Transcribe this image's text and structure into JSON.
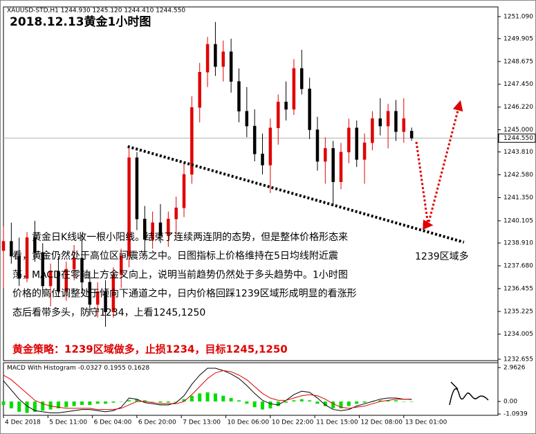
{
  "chart_data": [
    {
      "type": "candlestick",
      "header": "XAUUSD-STD,H1  1244.930 1245.120 1244.410 1244.550",
      "title": "2018.12.13黄金1小时图",
      "x": [
        0,
        3,
        6,
        9,
        12,
        15,
        18,
        21,
        24,
        27,
        30,
        33,
        36,
        39,
        42,
        45,
        48,
        51,
        54,
        57,
        60,
        63,
        66,
        69,
        72,
        75,
        78,
        81,
        84,
        87,
        90,
        93,
        96,
        99,
        102,
        105,
        108,
        111,
        114,
        117,
        120,
        123,
        126,
        129,
        132,
        135,
        138,
        141,
        144,
        147,
        150,
        153,
        156
      ],
      "open": [
        1238.5,
        1239.0,
        1238.2,
        1237.0,
        1239.2,
        1238.4,
        1236.6,
        1237.4,
        1236.3,
        1237.5,
        1238.1,
        1236.8,
        1235.6,
        1236.3,
        1235.2,
        1237.2,
        1238.2,
        1243.5,
        1240.2,
        1239.1,
        1240.0,
        1239.3,
        1240.2,
        1240.8,
        1242.6,
        1246.2,
        1248.1,
        1249.6,
        1248.4,
        1249.2,
        1247.6,
        1246.0,
        1245.2,
        1243.7,
        1243.1,
        1245.1,
        1246.5,
        1246.1,
        1248.3,
        1247.2,
        1245.0,
        1243.3,
        1244.0,
        1242.2,
        1243.8,
        1245.1,
        1243.4,
        1244.3,
        1245.6,
        1245.2,
        1246.0,
        1244.9,
        1244.93
      ],
      "high": [
        1239.8,
        1240.0,
        1239.2,
        1239.5,
        1240.1,
        1238.9,
        1237.8,
        1238.2,
        1237.9,
        1238.8,
        1239.3,
        1237.4,
        1236.8,
        1236.9,
        1237.6,
        1238.6,
        1244.1,
        1243.8,
        1240.9,
        1240.6,
        1241.0,
        1240.6,
        1241.4,
        1243.2,
        1246.8,
        1248.6,
        1250.0,
        1250.8,
        1249.8,
        1249.9,
        1248.3,
        1247.3,
        1246.1,
        1244.8,
        1245.6,
        1246.9,
        1247.6,
        1248.8,
        1249.3,
        1247.8,
        1245.7,
        1244.6,
        1244.4,
        1244.3,
        1245.6,
        1245.5,
        1244.8,
        1246.0,
        1246.7,
        1246.4,
        1246.6,
        1246.7,
        1245.12
      ],
      "low": [
        1236.5,
        1237.8,
        1236.6,
        1236.8,
        1237.9,
        1236.2,
        1235.5,
        1236.0,
        1235.8,
        1236.9,
        1236.2,
        1235.0,
        1234.9,
        1234.4,
        1234.9,
        1236.5,
        1237.6,
        1239.6,
        1238.4,
        1238.6,
        1238.9,
        1238.7,
        1239.2,
        1240.3,
        1242.1,
        1245.4,
        1247.3,
        1247.9,
        1247.6,
        1247.0,
        1245.4,
        1244.6,
        1243.3,
        1242.6,
        1241.6,
        1244.2,
        1245.5,
        1245.8,
        1246.9,
        1244.5,
        1242.8,
        1242.1,
        1240.9,
        1241.8,
        1243.2,
        1243.0,
        1242.1,
        1243.9,
        1244.7,
        1244.0,
        1244.4,
        1244.3,
        1244.41
      ],
      "close": [
        1239.0,
        1238.2,
        1237.0,
        1239.2,
        1238.4,
        1236.6,
        1237.4,
        1236.3,
        1237.5,
        1238.1,
        1236.8,
        1235.6,
        1236.3,
        1235.2,
        1237.2,
        1238.2,
        1243.5,
        1240.2,
        1239.1,
        1240.0,
        1239.3,
        1240.2,
        1240.8,
        1242.6,
        1246.2,
        1248.1,
        1249.6,
        1248.4,
        1249.2,
        1247.6,
        1246.0,
        1245.2,
        1243.7,
        1243.1,
        1245.1,
        1246.5,
        1246.1,
        1248.3,
        1247.2,
        1245.0,
        1243.3,
        1244.0,
        1242.2,
        1243.8,
        1245.1,
        1243.4,
        1244.3,
        1245.6,
        1245.2,
        1246.0,
        1244.9,
        1245.6,
        1244.55
      ],
      "up_color": "#e00000",
      "down_color": "#000000",
      "xlim": [
        0,
        189
      ],
      "ylim": [
        1232.58,
        1251.61
      ],
      "yticks": [
        {
          "value": 1251.09,
          "label": "1251.090"
        },
        {
          "value": 1249.905,
          "label": "1249.905"
        },
        {
          "value": 1248.675,
          "label": "1248.675"
        },
        {
          "value": 1247.45,
          "label": "1247.450"
        },
        {
          "value": 1246.22,
          "label": "1246.220"
        },
        {
          "value": 1245,
          "label": "1245.000"
        },
        {
          "value": 1243.81,
          "label": "1243.810"
        },
        {
          "value": 1242.58,
          "label": "1242.580"
        },
        {
          "value": 1241.35,
          "label": "1241.350"
        },
        {
          "value": 1240.105,
          "label": "1240.105"
        },
        {
          "value": 1238.91,
          "label": "1238.910"
        },
        {
          "value": 1237.68,
          "label": "1237.680"
        },
        {
          "value": 1236.455,
          "label": "1236.455"
        },
        {
          "value": 1235.225,
          "label": "1235.225"
        },
        {
          "value": 1234.005,
          "label": "1234.005"
        },
        {
          "value": 1232.655,
          "label": "1232.655"
        }
      ],
      "xticks": [
        {
          "value": 0,
          "label": "4 Dec 2018"
        },
        {
          "value": 17,
          "label": "5 Dec 11:00"
        },
        {
          "value": 34,
          "label": "6 Dec 04:00"
        },
        {
          "value": 51,
          "label": "6 Dec 20:00"
        },
        {
          "value": 68,
          "label": "7 Dec 13:00"
        },
        {
          "value": 85,
          "label": "10 Dec 06:00"
        },
        {
          "value": 102,
          "label": "10 Dec 22:00"
        },
        {
          "value": 119,
          "label": "11 Dec 15:00"
        },
        {
          "value": 136,
          "label": "12 Dec 08:00"
        },
        {
          "value": 153,
          "label": "13 Dec 01:00"
        }
      ],
      "last_price": {
        "value": 1244.55,
        "label": "1244.550"
      },
      "trendline": {
        "x": [
          47.5,
          176
        ],
        "values": [
          1244.1,
          1238.95
        ],
        "color": "#000000"
      },
      "arrow": {
        "x": [
          157.8,
          162.3,
          174.2
        ],
        "values": [
          1244.35,
          1239.88,
          1246.32
        ],
        "color": "#e00000"
      },
      "callout": "1239区域多",
      "paragraph": [
        "　　黄金日K线收一根小阳线。结束了连续两连阴的态势，但是整体价格形态来",
        "看，黄金仍然处于高位区间震荡之中。日图指标上价格维持在5日均线附近震",
        "荡，MACD在零轴上方金叉向上，说明当前趋势仍然处于多头趋势中。1小时图",
        "价格的高位调整处于倾向下通道之中，日内价格回踩1239区域形成明显的看涨形",
        "态后看带多头，防守1234，上看1245,1250"
      ],
      "strategy": "黄金策略：1239区域做多，止损1234，目标1245,1250"
    },
    {
      "type": "macd",
      "label": "MACD With Histogram",
      "histogram": [
        -0.3,
        -0.6,
        -0.9,
        -1.0,
        -0.9,
        -0.8,
        -0.7,
        -0.6,
        -0.5,
        -0.4,
        -0.3,
        -0.3,
        -0.2,
        -0.2,
        -0.1,
        0,
        0.1,
        0.2,
        0.1,
        0,
        -0.1,
        -0.1,
        0,
        0.2,
        0.5,
        0.7,
        0.8,
        0.7,
        0.5,
        0.3,
        0.1,
        -0.2,
        -0.5,
        -0.7,
        -0.6,
        -0.4,
        -0.1,
        0.1,
        0.2,
        0.1,
        -0.2,
        -0.4,
        -0.6,
        -0.6,
        -0.4,
        -0.2,
        -0.1,
        0,
        0.1,
        0.1,
        0.1,
        0,
        -0.0327
      ],
      "macd": [
        1.8,
        1.0,
        0.2,
        -0.4,
        -0.8,
        -0.9,
        -1.0,
        -1.0,
        -0.9,
        -0.8,
        -0.7,
        -0.7,
        -0.8,
        -0.9,
        -0.8,
        -0.5,
        0.3,
        0.2,
        -0.1,
        -0.2,
        -0.3,
        -0.3,
        -0.1,
        0.5,
        1.5,
        2.3,
        2.9,
        2.9,
        2.7,
        2.4,
        2.0,
        1.4,
        0.7,
        0.1,
        -0.2,
        -0.3,
        0.1,
        0.6,
        0.9,
        0.8,
        0.3,
        -0.3,
        -0.7,
        -0.8,
        -0.7,
        -0.4,
        -0.2,
        0,
        0.2,
        0.3,
        0.3,
        0.2,
        0.1955
      ],
      "signal": [
        2.3,
        1.9,
        1.3,
        0.7,
        0.1,
        -0.2,
        -0.4,
        -0.5,
        -0.6,
        -0.6,
        -0.6,
        -0.6,
        -0.7,
        -0.7,
        -0.7,
        -0.6,
        -0.3,
        0,
        0,
        -0.1,
        -0.2,
        -0.2,
        -0.2,
        0,
        0.6,
        1.3,
        2.0,
        2.5,
        2.7,
        2.6,
        2.3,
        1.9,
        1.3,
        0.7,
        0.3,
        0.1,
        0.1,
        0.3,
        0.5,
        0.6,
        0.5,
        0.2,
        -0.2,
        -0.5,
        -0.6,
        -0.5,
        -0.4,
        -0.2,
        0,
        0.1,
        0.2,
        0.2,
        0.1628
      ],
      "histogram_color": "#00dd00",
      "macd_color": "#000000",
      "signal_color": "#e00000",
      "ylim": [
        -1.209,
        3.386
      ],
      "yticks": [
        {
          "value": 2.9626,
          "label": "2.9626"
        },
        {
          "value": 0,
          "label": "0.00"
        },
        {
          "value": -1.0939,
          "label": "-1.0939"
        }
      ]
    }
  ]
}
